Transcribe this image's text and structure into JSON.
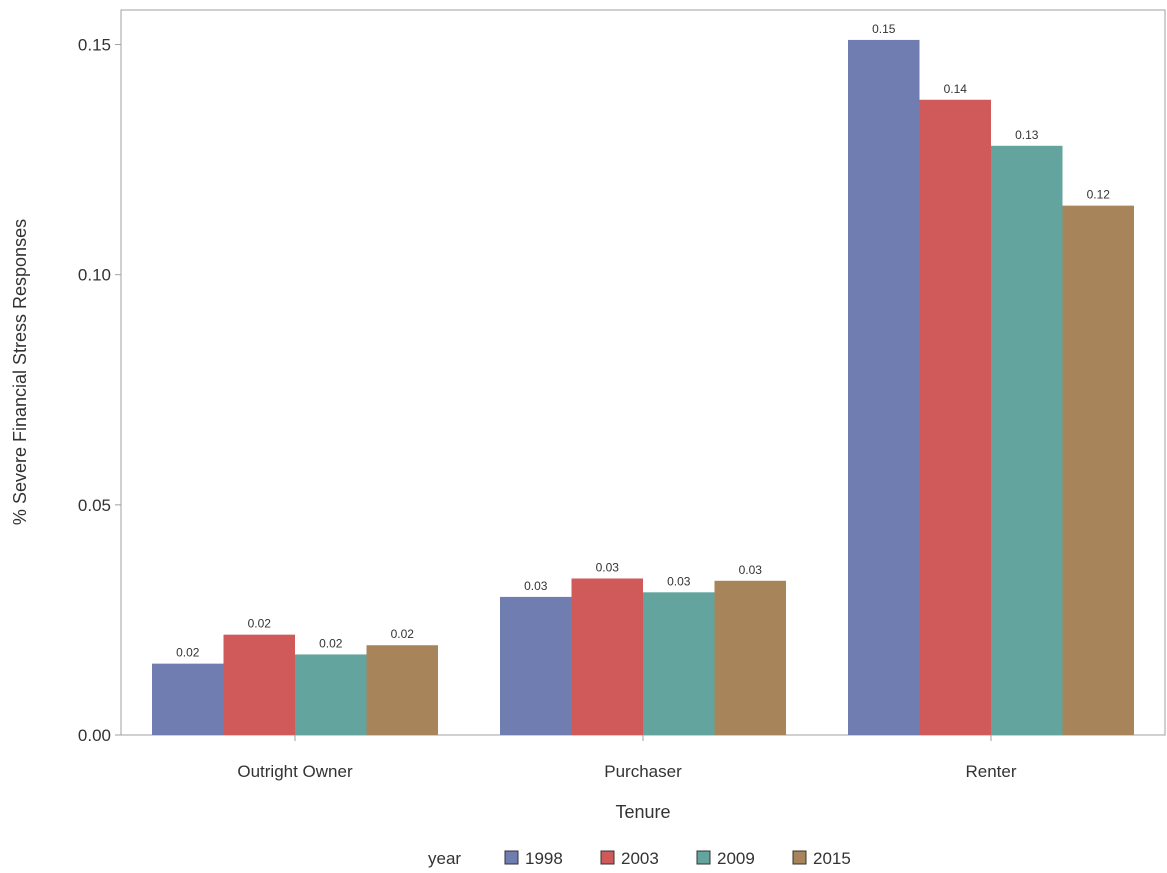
{
  "chart_data": {
    "type": "bar",
    "categories": [
      "Outright Owner",
      "Purchaser",
      "Renter"
    ],
    "series": [
      {
        "name": "1998",
        "values": [
          0.0155,
          0.03,
          0.151
        ],
        "labels": [
          "0.02",
          "0.03",
          "0.15"
        ],
        "color": "#6f7db1"
      },
      {
        "name": "2003",
        "values": [
          0.0218,
          0.034,
          0.138
        ],
        "labels": [
          "0.02",
          "0.03",
          "0.14"
        ],
        "color": "#d05a5a"
      },
      {
        "name": "2009",
        "values": [
          0.0175,
          0.031,
          0.128
        ],
        "labels": [
          "0.02",
          "0.03",
          "0.13"
        ],
        "color": "#63a59e"
      },
      {
        "name": "2015",
        "values": [
          0.0195,
          0.0335,
          0.115
        ],
        "labels": [
          "0.02",
          "0.03",
          "0.12"
        ],
        "color": "#a8845a"
      }
    ],
    "xlabel": "Tenure",
    "ylabel": "% Severe Financial Stress Responses",
    "ylim": [
      0,
      0.1575
    ],
    "yticks": [
      "0.00",
      "0.05",
      "0.10",
      "0.15"
    ],
    "legend_title": "year",
    "legend_position": "bottom",
    "grid": false
  }
}
